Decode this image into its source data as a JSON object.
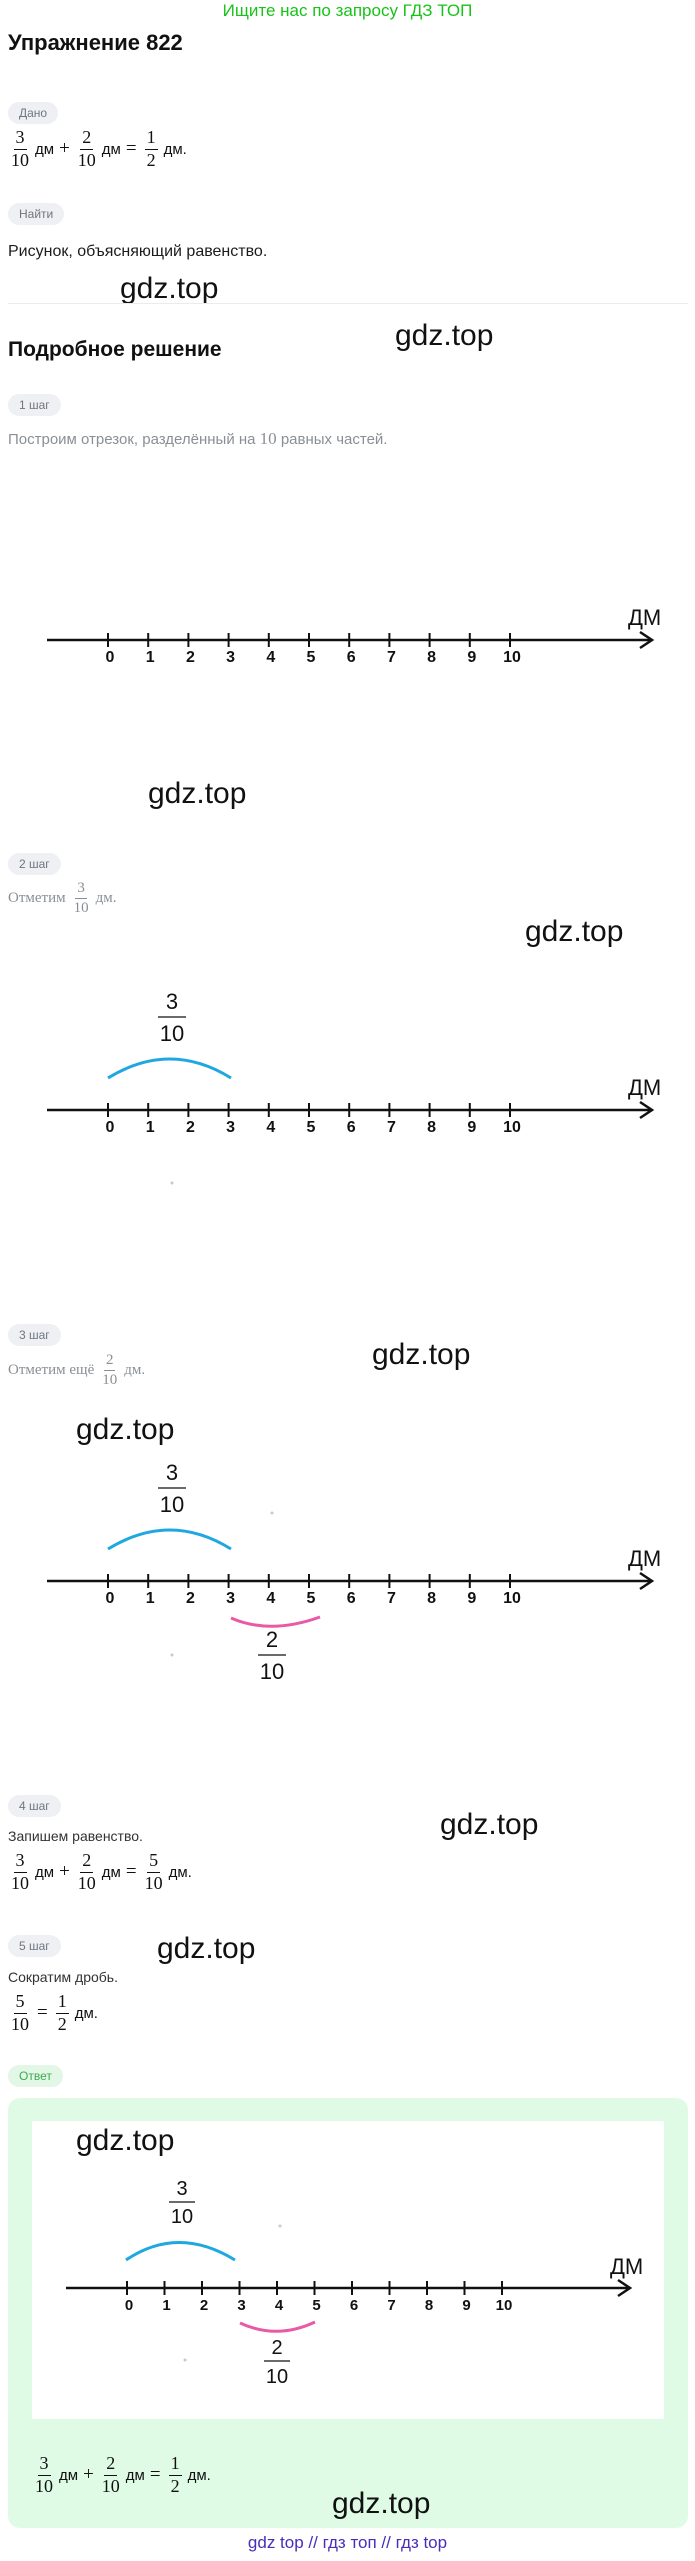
{
  "banner": "Ищите нас по запросу ГДЗ ТОП",
  "title": "Упражнение 822",
  "given_label": "Дано",
  "find_label": "Найти",
  "find_text": "Рисунок, объясняющий равенство.",
  "solution_title": "Подробное решение",
  "steps": [
    {
      "label": "1 шаг",
      "text": "Построим отрезок, разделённый на",
      "number": "10",
      "text_after": "равных частей."
    },
    {
      "label": "2 шаг",
      "text": "Отметим",
      "unit": "дм."
    },
    {
      "label": "3 шаг",
      "text": "Отметим ещё",
      "unit": "дм."
    },
    {
      "label": "4 шаг",
      "text": "Запишем равенство."
    },
    {
      "label": "5 шаг",
      "text": "Сократим дробь."
    }
  ],
  "answer_label": "Ответ",
  "unit_dm": "дм",
  "unit_dm_dot": "дм.",
  "plus": "+",
  "equals": "=",
  "fractions": {
    "three_tenths": {
      "num": "3",
      "den": "10"
    },
    "two_tenths": {
      "num": "2",
      "den": "10"
    },
    "five_tenths": {
      "num": "5",
      "den": "10"
    },
    "one_half": {
      "num": "1",
      "den": "2"
    }
  },
  "number_line": {
    "ticks": [
      "0",
      "1",
      "2",
      "3",
      "4",
      "5",
      "6",
      "7",
      "8",
      "9",
      "10"
    ],
    "axis_label": "ДМ",
    "answer_axis_label": "ДМ"
  },
  "colors": {
    "blue_arc": "#1fa8e0",
    "pink_arc": "#e85aa6",
    "banner": "#19c219",
    "footer": "#4a2db8"
  },
  "watermark": "gdz.top",
  "footer": "gdz top  //  гдз топ  //  гдз top"
}
